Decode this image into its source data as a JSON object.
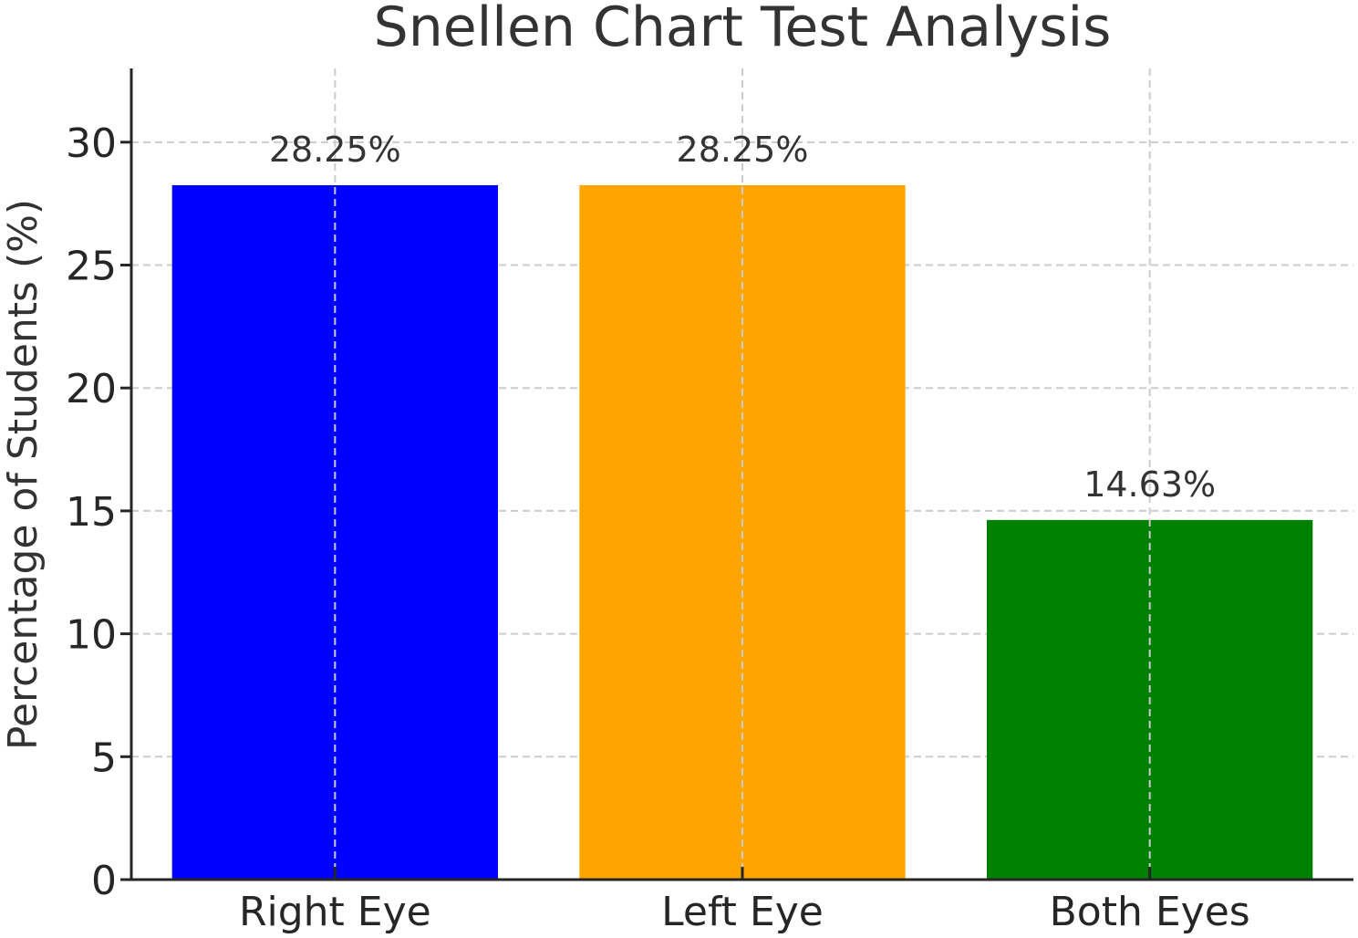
{
  "chart_data": {
    "type": "bar",
    "title": "Snellen Chart Test Analysis",
    "xlabel": "",
    "ylabel": "Percentage of Students (%)",
    "categories": [
      "Right Eye",
      "Left Eye",
      "Both Eyes"
    ],
    "values": [
      28.25,
      28.25,
      14.63
    ],
    "value_labels": [
      "28.25%",
      "28.25%",
      "14.63%"
    ],
    "colors": [
      "#0000ff",
      "#ffa500",
      "#008000"
    ],
    "ylim": [
      0,
      33
    ],
    "yticks": [
      0,
      5,
      10,
      15,
      20,
      25,
      30
    ],
    "grid": true,
    "legend": "none"
  }
}
